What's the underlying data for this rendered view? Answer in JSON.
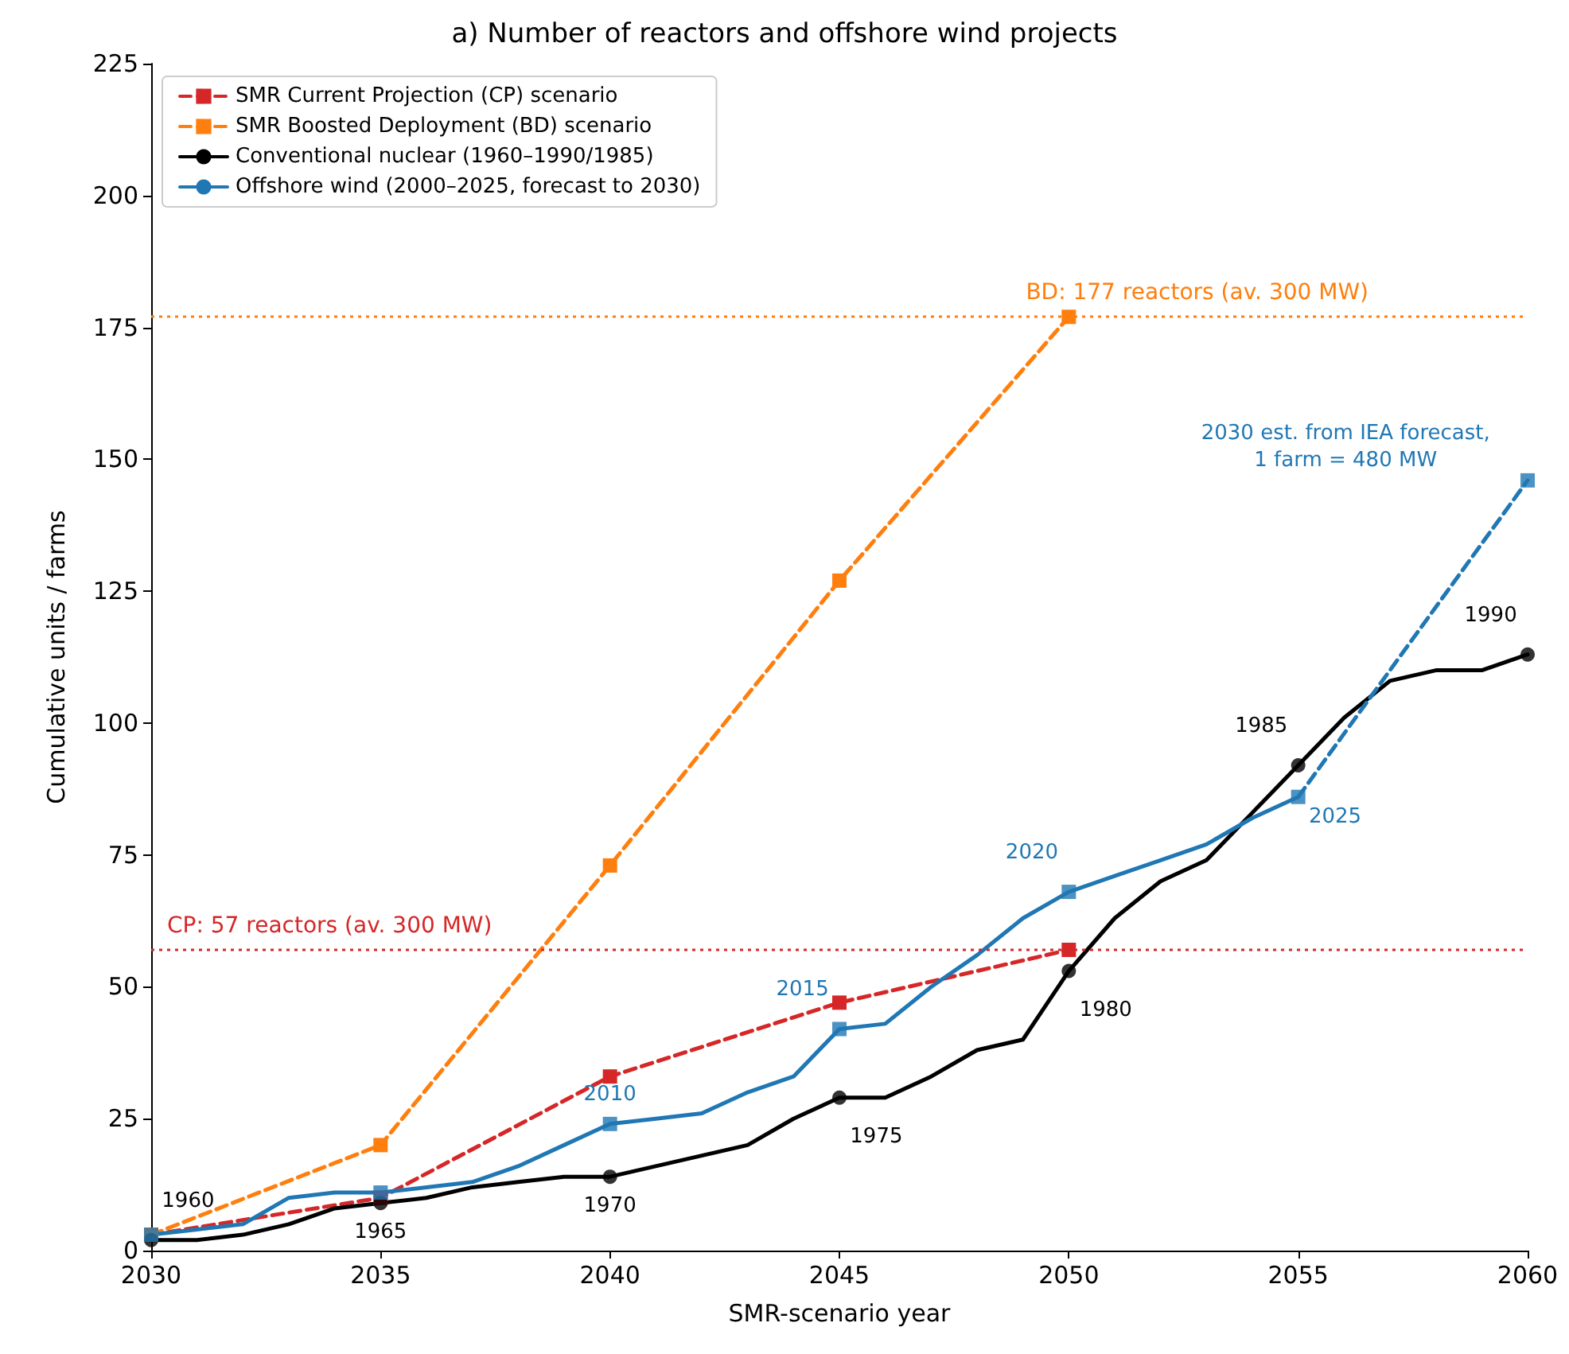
{
  "chart_data": {
    "type": "line",
    "title": "a) Number of reactors and offshore wind projects",
    "xlabel": "SMR-scenario year",
    "ylabel": "Cumulative units / farms",
    "series": [
      {
        "name": "SMR Current Projection (CP) scenario",
        "color": "#d62728",
        "x": [
          2030,
          2035,
          2040,
          2045,
          2050
        ],
        "values": [
          3,
          10,
          33,
          47,
          57
        ],
        "marker": "square",
        "line_style": "dashed"
      },
      {
        "name": "SMR Boosted Deployment (BD) scenario",
        "color": "#ff7f0e",
        "x": [
          2030,
          2035,
          2040,
          2045,
          2050
        ],
        "values": [
          3,
          20,
          73,
          127,
          177
        ],
        "marker": "square",
        "line_style": "dashed"
      },
      {
        "name": "Conventional nuclear (1960–1990/1985)",
        "color": "#000000",
        "x": [
          2030,
          2031,
          2032,
          2033,
          2034,
          2035,
          2036,
          2037,
          2038,
          2039,
          2040,
          2041,
          2042,
          2043,
          2044,
          2045,
          2046,
          2047,
          2048,
          2049,
          2050,
          2051,
          2052,
          2053,
          2054,
          2055,
          2056,
          2057,
          2058,
          2059,
          2060
        ],
        "values": [
          2,
          2,
          3,
          5,
          8,
          9,
          10,
          12,
          13,
          14,
          14,
          16,
          18,
          20,
          25,
          29,
          29,
          33,
          38,
          40,
          53,
          63,
          70,
          74,
          83,
          92,
          101,
          108,
          110,
          110,
          113
        ],
        "marker": "none",
        "line_style": "solid"
      },
      {
        "type": "scatter",
        "color": "#000000",
        "x": [
          2030,
          2035,
          2040,
          2045,
          2050,
          2055,
          2060
        ],
        "values": [
          2,
          9,
          14,
          29,
          53,
          92,
          113
        ],
        "marker": "circle"
      },
      {
        "name": "Offshore wind (2000–2025, forecast to 2030)",
        "color": "#1f77b4",
        "x": [
          2030,
          2031,
          2032,
          2033,
          2034,
          2035,
          2036,
          2037,
          2038,
          2039,
          2040,
          2041,
          2042,
          2043,
          2044,
          2045,
          2046,
          2047,
          2048,
          2049,
          2050,
          2051,
          2052,
          2053,
          2054,
          2055
        ],
        "values": [
          3,
          4,
          5,
          10,
          11,
          11,
          12,
          13,
          16,
          20,
          24,
          25,
          26,
          30,
          33,
          42,
          43,
          50,
          56,
          63,
          68,
          71,
          74,
          77,
          82,
          86
        ],
        "marker": "none",
        "line_style": "solid"
      },
      {
        "color": "#1f77b4",
        "x": [
          2055,
          2060
        ],
        "values": [
          86,
          146
        ],
        "marker": "none",
        "line_style": "dashed"
      },
      {
        "type": "scatter",
        "color": "#1f77b4",
        "x": [
          2030,
          2035,
          2040,
          2045,
          2050,
          2055,
          2060
        ],
        "values": [
          3,
          11,
          24,
          42,
          68,
          86,
          146
        ],
        "marker": "square"
      }
    ],
    "ref_lines": [
      {
        "axis": "y",
        "value": 177,
        "label": "BD: 177 reactors (av. 300 MW)",
        "color": "#ff7f0e",
        "line_style": "dotted"
      },
      {
        "axis": "y",
        "value": 57,
        "label": "CP: 57 reactors (av. 300 MW)",
        "color": "#d62728",
        "line_style": "dotted"
      }
    ],
    "annotations": [
      {
        "text": "2030 est. from IEA forecast,\n1 farm = 480 MW",
        "x": 2060,
        "y": 146
      },
      {
        "text": "1960",
        "x": 2030,
        "y": 2
      },
      {
        "text": "1965",
        "x": 2035,
        "y": 9
      },
      {
        "text": "1970",
        "x": 2040,
        "y": 14
      },
      {
        "text": "1975",
        "x": 2045,
        "y": 29
      },
      {
        "text": "1980",
        "x": 2050,
        "y": 53
      },
      {
        "text": "1985",
        "x": 2055,
        "y": 92
      },
      {
        "text": "1990",
        "x": 2060,
        "y": 113
      },
      {
        "text": "2010",
        "x": 2040,
        "y": 24
      },
      {
        "text": "2015",
        "x": 2045,
        "y": 42
      },
      {
        "text": "2020",
        "x": 2050,
        "y": 68
      },
      {
        "text": "2025",
        "x": 2055,
        "y": 86
      }
    ],
    "xlim": [
      2030,
      2060
    ],
    "xticks": [
      2030,
      2035,
      2040,
      2045,
      2050,
      2055,
      2060
    ],
    "ylim": [
      0,
      225
    ],
    "yticks": [
      0,
      25,
      50,
      75,
      100,
      125,
      150,
      175,
      200,
      225
    ],
    "legend": "top left",
    "grid": false
  }
}
